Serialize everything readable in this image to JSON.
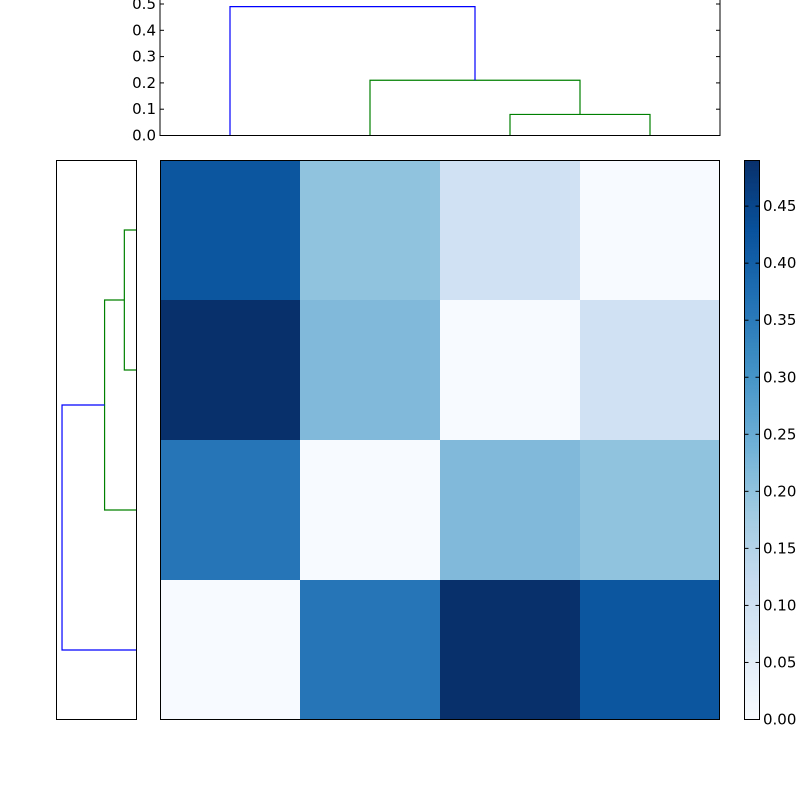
{
  "chart_data": {
    "type": "heatmap",
    "title": "",
    "colormap": "Blues",
    "matrix": [
      [
        0.42,
        0.2,
        0.1,
        0.0
      ],
      [
        0.49,
        0.22,
        0.0,
        0.1
      ],
      [
        0.36,
        0.0,
        0.22,
        0.2
      ],
      [
        0.0,
        0.36,
        0.49,
        0.42
      ]
    ],
    "colorbar": {
      "range": [
        0.0,
        0.49
      ],
      "ticks": [
        0.0,
        0.05,
        0.1,
        0.15,
        0.2,
        0.25,
        0.3,
        0.35,
        0.4,
        0.45
      ],
      "tick_labels": [
        "0.00",
        "0.05",
        "0.10",
        "0.15",
        "0.20",
        "0.25",
        "0.30",
        "0.35",
        "0.40",
        "0.45"
      ]
    },
    "top_dendrogram": {
      "ylim": [
        0,
        0.5
      ],
      "ticks": [
        0.0,
        0.1,
        0.2,
        0.3,
        0.4,
        0.5
      ],
      "tick_labels": [
        "0.0",
        "0.1",
        "0.2",
        "0.3",
        "0.4",
        "0.5"
      ],
      "links": [
        {
          "left": 2,
          "right": 3,
          "height": 0.08,
          "color": "#008000"
        },
        {
          "left": 1,
          "right": 2.5,
          "height": 0.21,
          "color": "#008000"
        },
        {
          "left": 0,
          "right": 1.75,
          "height": 0.49,
          "color": "#0000ff"
        }
      ]
    },
    "left_dendrogram": {
      "xlim": [
        0,
        0.5
      ],
      "links": [
        {
          "left": 0,
          "right": 1,
          "height": 0.08,
          "color": "#008000"
        },
        {
          "left": 0.5,
          "right": 2,
          "height": 0.21,
          "color": "#008000"
        },
        {
          "left": 1.25,
          "right": 3,
          "height": 0.49,
          "color": "#0000ff"
        }
      ]
    }
  }
}
